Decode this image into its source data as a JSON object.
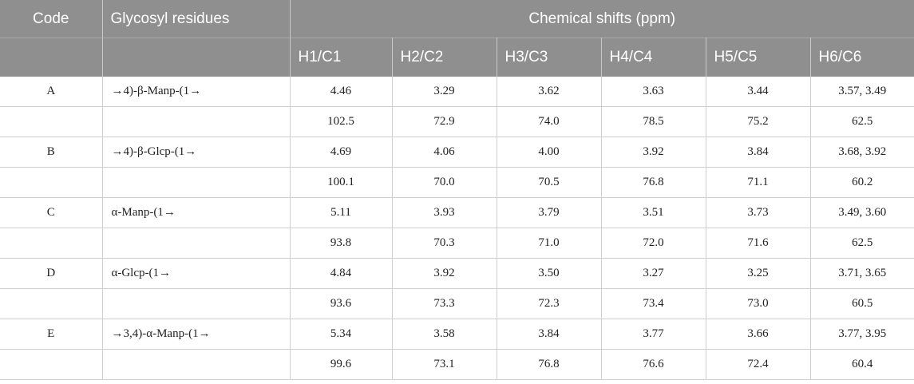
{
  "header": {
    "code": "Code",
    "residues": "Glycosyl residues",
    "shifts": "Chemical shifts (ppm)",
    "columns": [
      "H1/C1",
      "H2/C2",
      "H3/C3",
      "H4/C4",
      "H5/C5",
      "H6/C6"
    ]
  },
  "rows": [
    {
      "code": "A",
      "residue": "→4)-β-Manp-(1→",
      "values": [
        "4.46",
        "3.29",
        "3.62",
        "3.63",
        "3.44",
        "3.57, 3.49"
      ]
    },
    {
      "code": "",
      "residue": "",
      "values": [
        "102.5",
        "72.9",
        "74.0",
        "78.5",
        "75.2",
        "62.5"
      ]
    },
    {
      "code": "B",
      "residue": "→4)-β-Glcp-(1→",
      "values": [
        "4.69",
        "4.06",
        "4.00",
        "3.92",
        "3.84",
        "3.68, 3.92"
      ]
    },
    {
      "code": "",
      "residue": "",
      "values": [
        "100.1",
        "70.0",
        "70.5",
        "76.8",
        "71.1",
        "60.2"
      ]
    },
    {
      "code": "C",
      "residue": "α-Manp-(1→",
      "values": [
        "5.11",
        "3.93",
        "3.79",
        "3.51",
        "3.73",
        "3.49, 3.60"
      ]
    },
    {
      "code": "",
      "residue": "",
      "values": [
        "93.8",
        "70.3",
        "71.0",
        "72.0",
        "71.6",
        "62.5"
      ]
    },
    {
      "code": "D",
      "residue": "α-Glcp-(1→",
      "values": [
        "4.84",
        "3.92",
        "3.50",
        "3.27",
        "3.25",
        "3.71, 3.65"
      ]
    },
    {
      "code": "",
      "residue": "",
      "values": [
        "93.6",
        "73.3",
        "72.3",
        "73.4",
        "73.0",
        "60.5"
      ]
    },
    {
      "code": "E",
      "residue": "→3,4)-α-Manp-(1→",
      "values": [
        "5.34",
        "3.58",
        "3.84",
        "3.77",
        "3.66",
        "3.77, 3.95"
      ]
    },
    {
      "code": "",
      "residue": "",
      "values": [
        "99.6",
        "73.1",
        "76.8",
        "76.6",
        "72.4",
        "60.4"
      ]
    }
  ]
}
